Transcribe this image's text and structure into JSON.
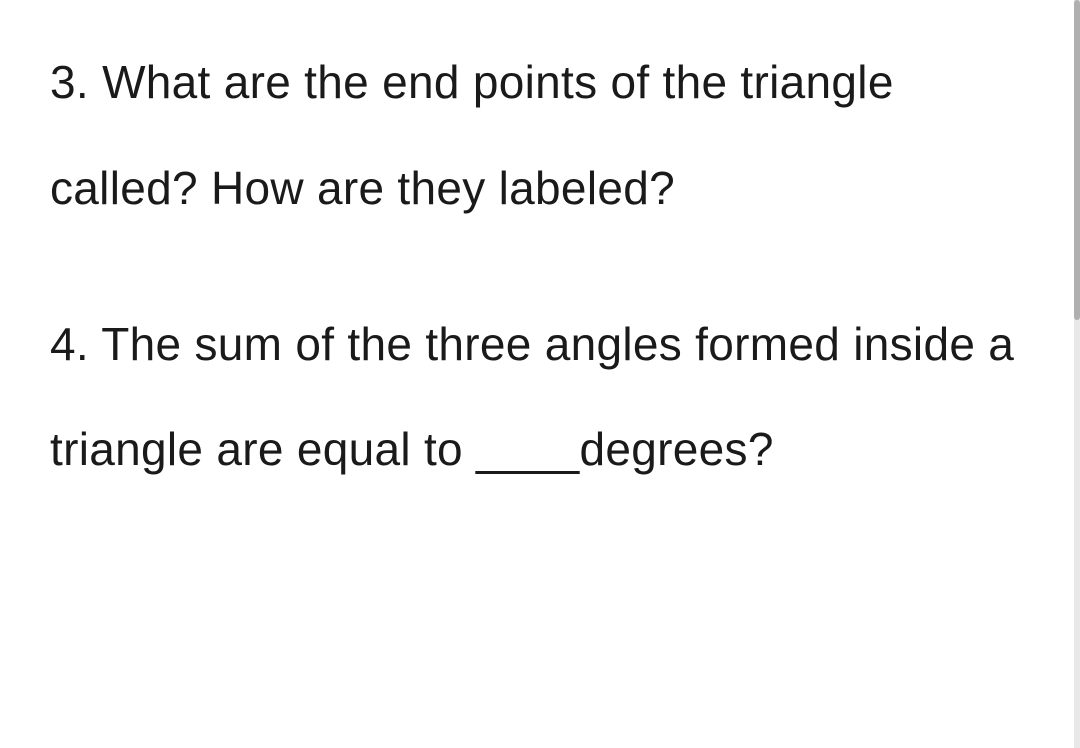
{
  "questions": [
    {
      "number": "3.",
      "text": "What are the end points of the triangle called? How are they labeled?"
    },
    {
      "number": "4.",
      "text": "The sum of the three angles formed inside a triangle are equal to ____degrees?"
    }
  ],
  "styling": {
    "background_color": "#ffffff",
    "text_color": "#1a1a1a",
    "font_size": 46,
    "line_height": 2.3,
    "scrollbar_track_color": "#e8e8e8",
    "scrollbar_thumb_color": "#b0b0b0"
  }
}
